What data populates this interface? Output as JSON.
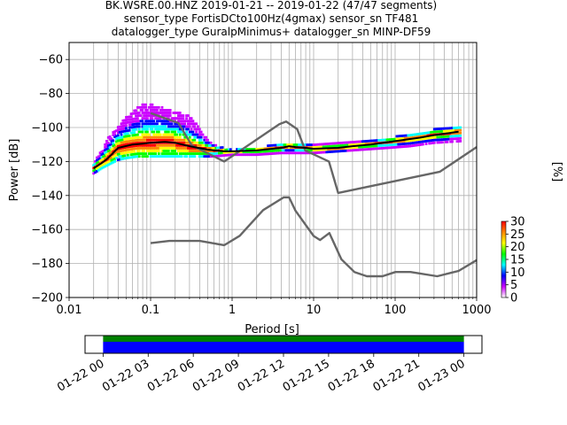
{
  "chart_data": [
    {
      "type": "heatmap",
      "title_lines": [
        "BK.WSRE.00.HNZ   2019-01-21 -- 2019-01-22  (47/47 segments)",
        "sensor_type FortisDCto100Hz(4gmax) sensor_sn TF481",
        "datalogger_type GuralpMinimus+ datalogger_sn MINP-DF59"
      ],
      "xlabel": "Period [s]",
      "ylabel": "Power [dB]",
      "x_scale": "log",
      "xlim": [
        0.01,
        1000
      ],
      "ylim": [
        -200,
        -50
      ],
      "grid": true,
      "x_ticks": [
        {
          "value": 0.01,
          "label": "0.01"
        },
        {
          "value": 0.1,
          "label": "0.1"
        },
        {
          "value": 1,
          "label": "1"
        },
        {
          "value": 10,
          "label": "10"
        },
        {
          "value": 100,
          "label": "100"
        },
        {
          "value": 1000,
          "label": "1000"
        }
      ],
      "y_ticks": [
        {
          "value": -60,
          "label": "−60"
        },
        {
          "value": -80,
          "label": "−80"
        },
        {
          "value": -100,
          "label": "−100"
        },
        {
          "value": -120,
          "label": "−120"
        },
        {
          "value": -140,
          "label": "−140"
        },
        {
          "value": -160,
          "label": "−160"
        },
        {
          "value": -180,
          "label": "−180"
        },
        {
          "value": -200,
          "label": "−200"
        }
      ],
      "series": [
        {
          "role": "high-noise-model",
          "color": "#666666",
          "x": [
            0.1,
            0.22,
            0.32,
            0.8,
            3.8,
            4.6,
            6.3,
            7.9,
            15.4,
            20,
            354.8,
            1000
          ],
          "y": [
            -91.5,
            -97.4,
            -110.5,
            -120,
            -98,
            -96.5,
            -101,
            -113.5,
            -120,
            -138.5,
            -126,
            -111.5
          ]
        },
        {
          "role": "low-noise-model",
          "color": "#666666",
          "x": [
            0.1,
            0.17,
            0.4,
            0.8,
            1.24,
            2.4,
            4.3,
            5,
            6,
            10,
            12,
            15.6,
            21.9,
            31.6,
            45,
            70,
            101,
            154,
            328,
            600,
            1000
          ],
          "y": [
            -168,
            -166.7,
            -166.7,
            -169.2,
            -163.7,
            -148.6,
            -141.1,
            -141.1,
            -149,
            -163.8,
            -166.2,
            -162.1,
            -177.5,
            -185,
            -187.5,
            -187.5,
            -185,
            -185,
            -187.5,
            -184.4,
            -178
          ]
        },
        {
          "role": "mean",
          "color": "#000000",
          "x": [
            0.02,
            0.025,
            0.03,
            0.04,
            0.06,
            0.08,
            0.1,
            0.15,
            0.2,
            0.3,
            0.5,
            0.8,
            1,
            2,
            4,
            5,
            6,
            8,
            10,
            20,
            30,
            50,
            100,
            200,
            300,
            500,
            600
          ],
          "y": [
            -124,
            -121,
            -118,
            -112,
            -110,
            -109.5,
            -109,
            -108.5,
            -109,
            -111,
            -113,
            -114,
            -114,
            -113.5,
            -112,
            -111,
            -111.5,
            -112,
            -112.5,
            -112,
            -111,
            -110,
            -108,
            -106,
            -104.5,
            -103,
            -102.5
          ]
        }
      ],
      "psd_cloud": [
        {
          "x": 0.02,
          "ymin": -127,
          "ymax": -121
        },
        {
          "x": 0.025,
          "ymin": -124,
          "ymax": -113
        },
        {
          "x": 0.03,
          "ymin": -122,
          "ymax": -106
        },
        {
          "x": 0.04,
          "ymin": -119,
          "ymax": -99
        },
        {
          "x": 0.05,
          "ymin": -118,
          "ymax": -94
        },
        {
          "x": 0.07,
          "ymin": -117,
          "ymax": -88
        },
        {
          "x": 0.09,
          "ymin": -117,
          "ymax": -85
        },
        {
          "x": 0.12,
          "ymin": -117,
          "ymax": -87
        },
        {
          "x": 0.16,
          "ymin": -117,
          "ymax": -89
        },
        {
          "x": 0.22,
          "ymin": -117,
          "ymax": -91
        },
        {
          "x": 0.3,
          "ymin": -117,
          "ymax": -93
        },
        {
          "x": 0.4,
          "ymin": -117,
          "ymax": -100
        },
        {
          "x": 0.5,
          "ymin": -117,
          "ymax": -107
        },
        {
          "x": 0.6,
          "ymin": -117,
          "ymax": -110
        },
        {
          "x": 1,
          "ymin": -116,
          "ymax": -113
        },
        {
          "x": 2,
          "ymin": -116,
          "ymax": -112
        },
        {
          "x": 4,
          "ymin": -115,
          "ymax": -109
        },
        {
          "x": 6,
          "ymin": -115,
          "ymax": -109
        },
        {
          "x": 10,
          "ymin": -115,
          "ymax": -110
        },
        {
          "x": 20,
          "ymin": -114,
          "ymax": -109
        },
        {
          "x": 40,
          "ymin": -113,
          "ymax": -108
        },
        {
          "x": 80,
          "ymin": -112,
          "ymax": -106
        },
        {
          "x": 150,
          "ymin": -111,
          "ymax": -104
        },
        {
          "x": 300,
          "ymin": -109,
          "ymax": -101
        },
        {
          "x": 650,
          "ymin": -108,
          "ymax": -100
        }
      ],
      "colorbar": {
        "label": "[%]",
        "range": [
          0,
          30
        ],
        "ticks": [
          "0",
          "5",
          "10",
          "15",
          "20",
          "25",
          "30"
        ],
        "colors": [
          "#ffffff",
          "#cc00ff",
          "#0000ff",
          "#00ffff",
          "#00ff00",
          "#ffff00",
          "#ff8800",
          "#ff0000"
        ]
      }
    },
    {
      "type": "timeline",
      "date_ticks": [
        "01-22 00",
        "01-22 03",
        "01-22 06",
        "01-22 09",
        "01-22 12",
        "01-22 15",
        "01-22 18",
        "01-22 21",
        "01-23 00"
      ],
      "segments": [
        {
          "name": "data",
          "color": "#008000",
          "start_hour": 0,
          "end_hour": 24
        },
        {
          "name": "coverage",
          "color": "#0000ff",
          "start_hour": 0,
          "end_hour": 24
        }
      ],
      "xlim_hours": [
        -1.2,
        25.2
      ]
    }
  ]
}
